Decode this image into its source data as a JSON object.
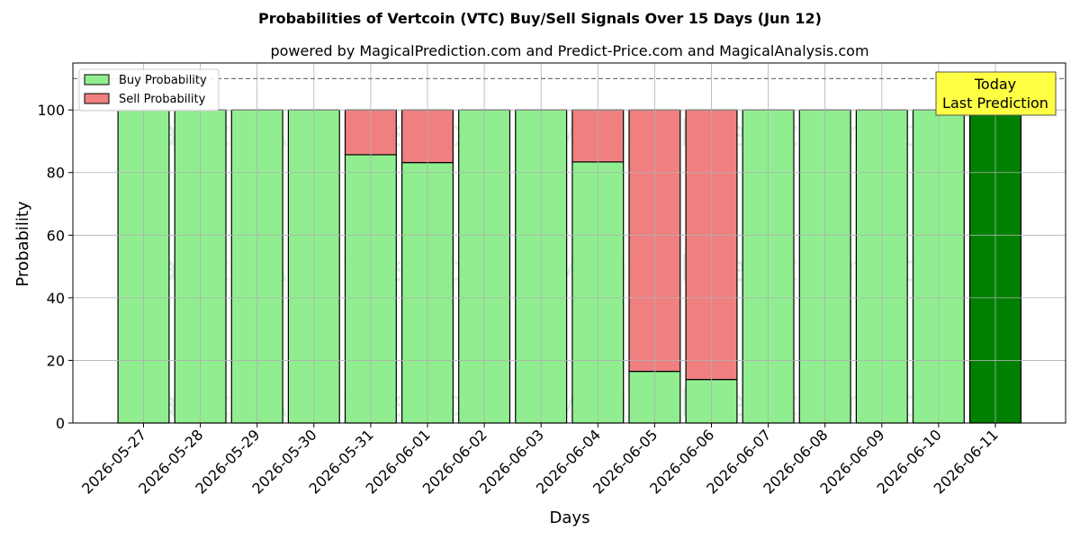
{
  "chart_data": {
    "type": "bar",
    "stacked": true,
    "title": "Probabilities of Vertcoin (VTC) Buy/Sell Signals Over 15 Days (Jun 12)",
    "subtitle": "powered by MagicalPrediction.com and Predict-Price.com and MagicalAnalysis.com",
    "xlabel": "Days",
    "ylabel": "Probability",
    "ylim": [
      0,
      115
    ],
    "yticks": [
      0,
      20,
      40,
      60,
      80,
      100
    ],
    "grid": true,
    "legend_position": "top-left",
    "reference_line": 110,
    "categories": [
      "2026-05-27",
      "2026-05-28",
      "2026-05-29",
      "2026-05-30",
      "2026-05-31",
      "2026-06-01",
      "2026-06-02",
      "2026-06-03",
      "2026-06-04",
      "2026-06-05",
      "2026-06-06",
      "2026-06-07",
      "2026-06-08",
      "2026-06-09",
      "2026-06-10",
      "2026-06-11"
    ],
    "series": [
      {
        "name": "Buy Probability",
        "color": "#90ee90",
        "values": [
          100,
          100,
          100,
          100,
          85.7,
          83.2,
          100,
          100,
          83.4,
          16.5,
          13.9,
          100,
          100,
          100,
          100,
          100
        ]
      },
      {
        "name": "Sell Probability",
        "color": "#f08080",
        "values": [
          0,
          0,
          0,
          0,
          14.3,
          16.8,
          0,
          0,
          16.6,
          83.5,
          86.1,
          0,
          0,
          0,
          0,
          0
        ]
      }
    ],
    "highlight": {
      "index": 15,
      "color": "#008000"
    },
    "annotation": {
      "lines": [
        "Today",
        "Last Prediction"
      ],
      "background": "#ffff44"
    },
    "watermarks": [
      "MagicalAnalysis.com",
      "MagicalPrediction.com"
    ]
  }
}
